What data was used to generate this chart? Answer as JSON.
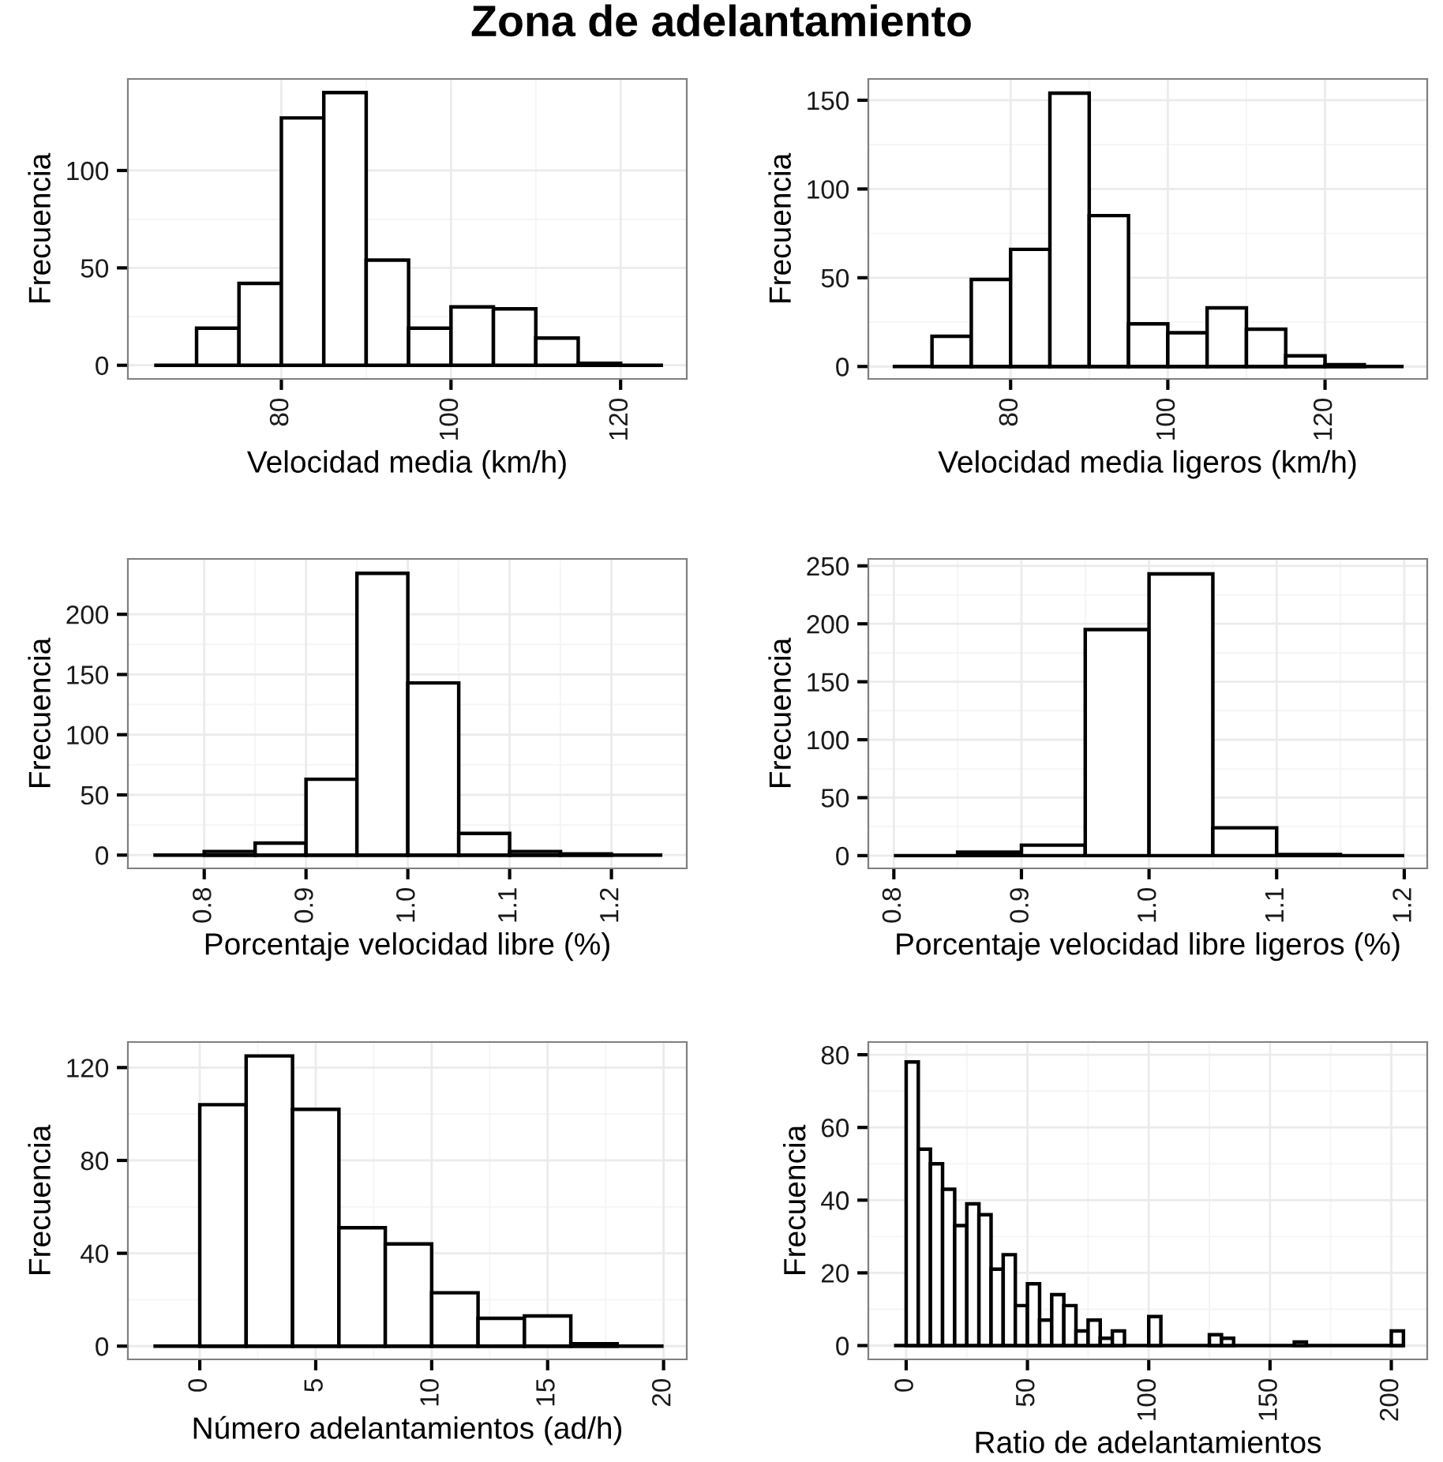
{
  "chart_data": [
    {
      "type": "histogram",
      "title": "Zona de adelantamiento",
      "xlabel": "Velocidad media (km/h)",
      "ylabel": "Frecuencia",
      "color": "#ffffff",
      "grid": true,
      "bins": [
        65,
        70,
        75,
        80,
        85,
        90,
        95,
        100,
        105,
        110,
        115,
        120,
        125
      ],
      "values": [
        0,
        19,
        42,
        127,
        140,
        54,
        19,
        30,
        29,
        14,
        1,
        0
      ],
      "xlim": [
        61.9,
        127.8
      ],
      "xticks": [
        80,
        100,
        120
      ],
      "ylim": [
        -7,
        147
      ],
      "yticks": [
        0,
        50,
        100
      ]
    },
    {
      "type": "histogram",
      "xlabel": "Velocidad media ligeros (km/h)",
      "ylabel": "Frecuencia",
      "color": "#ffffff",
      "grid": true,
      "bins": [
        65,
        70,
        75,
        80,
        85,
        90,
        95,
        100,
        105,
        110,
        115,
        120,
        125,
        130
      ],
      "values": [
        0,
        17,
        49,
        66,
        154,
        85,
        24,
        19,
        33,
        21,
        6,
        1,
        0
      ],
      "xlim": [
        61.9,
        133
      ],
      "xticks": [
        80,
        100,
        120
      ],
      "ylim": [
        -7,
        162
      ],
      "yticks": [
        0,
        50,
        100,
        150
      ]
    },
    {
      "type": "histogram",
      "xlabel": "Porcentaje velocidad libre (%)",
      "ylabel": "Frecuencia",
      "color": "#ffffff",
      "grid": true,
      "bins": [
        0.75,
        0.8,
        0.85,
        0.9,
        0.95,
        1.0,
        1.05,
        1.1,
        1.15,
        1.2,
        1.25
      ],
      "values": [
        0,
        3,
        10,
        63,
        234,
        143,
        18,
        3,
        1,
        0
      ],
      "xlim": [
        0.725,
        1.274
      ],
      "xticks": [
        0.8,
        0.9,
        {
          "value": 1,
          "label": "1.0"
        },
        1.1,
        1.2
      ],
      "ylim": [
        -11,
        246
      ],
      "yticks": [
        0,
        50,
        100,
        150,
        200
      ]
    },
    {
      "type": "histogram",
      "xlabel": "Porcentaje velocidad libre ligeros (%)",
      "ylabel": "Frecuencia",
      "color": "#ffffff",
      "grid": true,
      "bins": [
        0.8,
        0.85,
        0.9,
        0.95,
        1.0,
        1.05,
        1.1,
        1.15,
        1.2
      ],
      "values": [
        0,
        3,
        9,
        195,
        243,
        24,
        1,
        0
      ],
      "xlim": [
        0.78,
        1.218
      ],
      "xticks": [
        0.8,
        0.9,
        {
          "value": 1,
          "label": "1.0"
        },
        1.1,
        1.2
      ],
      "ylim": [
        -11,
        256
      ],
      "yticks": [
        0,
        50,
        100,
        150,
        200,
        250
      ]
    },
    {
      "type": "histogram",
      "xlabel": "Número adelantamientos (ad/h)",
      "ylabel": "Frecuencia",
      "color": "#ffffff",
      "grid": true,
      "bins": [
        -2,
        0,
        2,
        4,
        6,
        8,
        10,
        12,
        14,
        16,
        18,
        20
      ],
      "values": [
        0,
        104,
        125,
        102,
        51,
        44,
        23,
        12,
        13,
        1,
        0
      ],
      "xlim": [
        -3.1,
        21
      ],
      "xticks": [
        0,
        5,
        10,
        15,
        20
      ],
      "ylim": [
        -5.7,
        131
      ],
      "yticks": [
        0,
        40,
        80,
        120
      ]
    },
    {
      "type": "histogram",
      "xlabel": "Ratio de adelantamientos",
      "ylabel": "Frecuencia",
      "color": "#ffffff",
      "grid": true,
      "bins": [
        -5,
        0,
        5,
        10,
        15,
        20,
        25,
        30,
        35,
        40,
        45,
        50,
        55,
        60,
        65,
        70,
        75,
        80,
        85,
        90,
        95,
        100,
        105,
        110,
        115,
        120,
        125,
        130,
        135,
        140,
        145,
        150,
        155,
        160,
        165,
        170,
        175,
        180,
        185,
        190,
        195,
        200,
        205
      ],
      "values": [
        0,
        78,
        54,
        50,
        43,
        33,
        39,
        36,
        21,
        25,
        11,
        17,
        7,
        14,
        11,
        4,
        7,
        2,
        4,
        0,
        0,
        8,
        0,
        0,
        0,
        0,
        3,
        2,
        0,
        0,
        0,
        0,
        0,
        1,
        0,
        0,
        0,
        0,
        0,
        0,
        0,
        4
      ],
      "xlim": [
        -15.6,
        214.8
      ],
      "xticks": [
        0,
        50,
        100,
        150,
        200
      ],
      "ylim": [
        -3.8,
        83.5
      ],
      "yticks": [
        0,
        20,
        40,
        60,
        80
      ]
    }
  ]
}
